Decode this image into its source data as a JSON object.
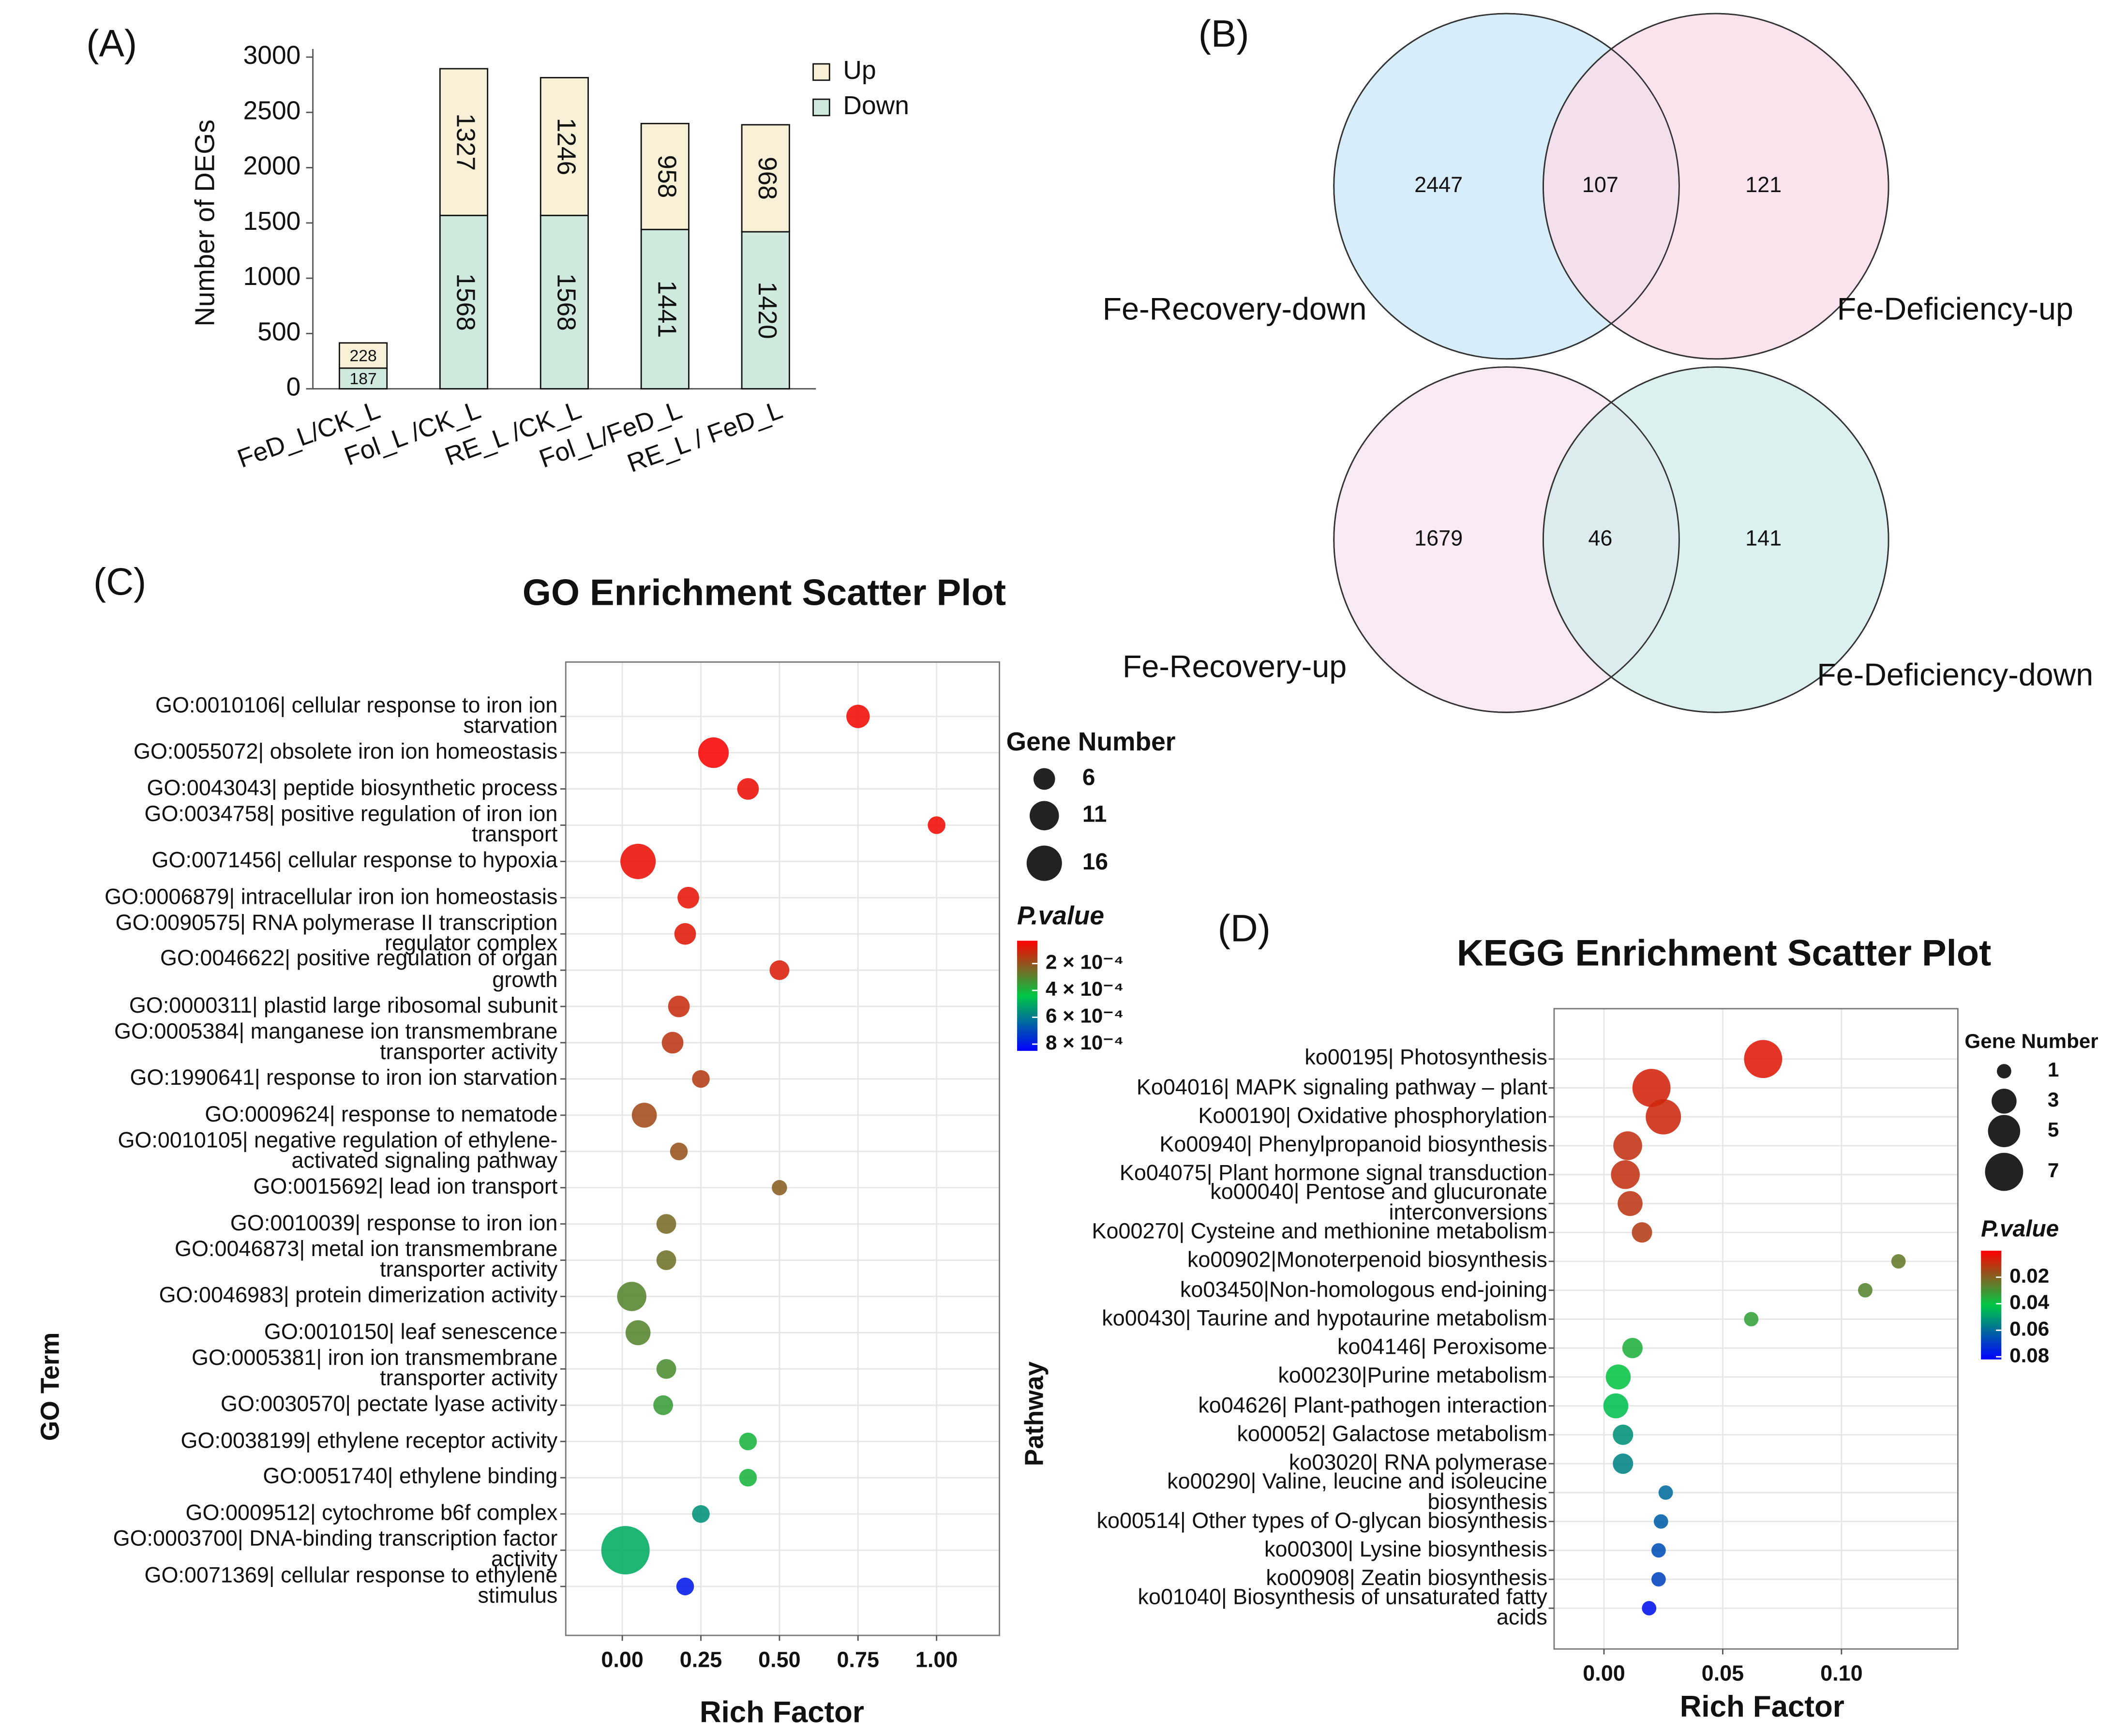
{
  "chart_data": [
    {
      "type": "bar",
      "panel": "(A)",
      "stacked": true,
      "ylabel": "Number of DEGs",
      "categories": [
        "FeD_L/CK_L",
        "Fol_L /CK_L",
        "RE_L /CK_L",
        "Fol_L/FeD_L",
        "RE_L / FeD_L"
      ],
      "series": [
        {
          "name": "Down",
          "color": "#cfe9dd",
          "values": [
            187,
            1568,
            1568,
            1441,
            1420
          ]
        },
        {
          "name": "Up",
          "color": "#f7f0d6",
          "values": [
            228,
            1327,
            1246,
            958,
            968
          ]
        }
      ],
      "ylim": [
        0,
        3000
      ],
      "yticks": [
        0,
        500,
        1000,
        1500,
        2000,
        2500,
        3000
      ],
      "legend": "top-right"
    },
    {
      "type": "venn",
      "panel": "(B)",
      "sets": [
        {
          "name": "Fe-Recovery-down",
          "color": "#cde9f7"
        },
        {
          "name": "Fe-Deficiency-up",
          "color": "#fadcea"
        }
      ],
      "values": [
        2447,
        107,
        121
      ]
    },
    {
      "type": "venn",
      "sets": [
        {
          "name": "Fe-Recovery-up",
          "color": "#f6e4ef"
        },
        {
          "name": "Fe-Deficiency-down",
          "color": "#d4ecec"
        }
      ],
      "values": [
        1679,
        46,
        141
      ]
    },
    {
      "type": "bubble",
      "panel": "(C)",
      "title": "GO Enrichment Scatter Plot",
      "xlabel": "Rich Factor",
      "ylabel": "GO Term",
      "categories": [
        "GO:0010106| cellular response to iron ion\nstarvation",
        "GO:0055072| obsolete iron ion homeostasis",
        "GO:0043043| peptide biosynthetic process",
        "GO:0034758| positive regulation of iron ion\ntransport",
        "GO:0071456| cellular response to hypoxia",
        "GO:0006879| intracellular iron ion homeostasis",
        "GO:0090575| RNA polymerase II transcription\nregulator complex",
        "GO:0046622| positive regulation of organ\ngrowth",
        "GO:0000311| plastid large ribosomal subunit",
        "GO:0005384| manganese ion transmembrane\ntransporter activity",
        "GO:1990641| response to iron ion starvation",
        "GO:0009624| response to nematode",
        "GO:0010105| negative regulation of ethylene-\nactivated signaling pathway",
        "GO:0015692| lead ion transport",
        "GO:0010039| response to iron ion",
        "GO:0046873| metal ion transmembrane\ntransporter activity",
        "GO:0046983| protein dimerization activity",
        "GO:0010150| leaf senescence",
        "GO:0005381| iron ion transmembrane\ntransporter activity",
        "GO:0030570| pectate lyase activity",
        "GO:0038199| ethylene receptor activity",
        "GO:0051740| ethylene binding",
        "GO:0009512| cytochrome b6f complex",
        "GO:0003700| DNA-binding transcription factor\nactivity",
        "GO:0071369| cellular response to ethylene\nstimulus"
      ],
      "x": [
        0.75,
        0.29,
        0.4,
        1.0,
        0.05,
        0.21,
        0.2,
        0.5,
        0.18,
        0.16,
        0.25,
        0.07,
        0.18,
        0.5,
        0.14,
        0.14,
        0.03,
        0.05,
        0.14,
        0.13,
        0.4,
        0.4,
        0.25,
        0.01,
        0.2
      ],
      "sizes": [
        7,
        12,
        6,
        4,
        16,
        6,
        6,
        5,
        6,
        6,
        4,
        8,
        4,
        3,
        5,
        5,
        11,
        8,
        5,
        5,
        4,
        4,
        4,
        30,
        4
      ],
      "pvalues": [
        5e-05,
        4e-05,
        6e-05,
        5e-05,
        6e-05,
        7e-05,
        8e-05,
        9e-05,
        0.00012,
        0.00014,
        0.00015,
        0.00018,
        0.0002,
        0.00022,
        0.00025,
        0.00026,
        0.0003,
        0.0003,
        0.00032,
        0.00035,
        0.0004,
        0.0004,
        0.00055,
        0.0005,
        0.0008
      ],
      "xlim": [
        -0.18,
        1.2
      ],
      "xticks": [
        {
          "value": 0,
          "label": "0.00"
        },
        {
          "value": 0.25,
          "label": "0.25"
        },
        {
          "value": 0.5,
          "label": "0.50"
        },
        {
          "value": 0.75,
          "label": "0.75"
        },
        {
          "value": 1,
          "label": "1.00"
        }
      ],
      "grid": true,
      "size_title": "Gene Number",
      "size_legend": [
        6,
        11,
        16
      ],
      "color_title": "P.value",
      "colors": [
        "#ff0000",
        "#00c845",
        "#0000ff"
      ],
      "clim": [
        3e-05,
        0.00085
      ],
      "cticks": [
        {
          "value": 0.0002,
          "label": "2 × 10⁻⁴"
        },
        {
          "value": 0.0004,
          "label": "4 × 10⁻⁴"
        },
        {
          "value": 0.0006,
          "label": "6 × 10⁻⁴"
        },
        {
          "value": 0.0008,
          "label": "8 × 10⁻⁴"
        }
      ]
    },
    {
      "type": "bubble",
      "panel": "(D)",
      "title": "KEGG Enrichment Scatter Plot",
      "xlabel": "Rich Factor",
      "ylabel": "Pathway",
      "categories": [
        "ko00195| Photosynthesis",
        "Ko04016| MAPK signaling pathway – plant",
        "Ko00190| Oxidative phosphorylation",
        "Ko00940| Phenylpropanoid biosynthesis",
        "Ko04075| Plant hormone signal transduction",
        "ko00040| Pentose and glucuronate\ninterconversions",
        "Ko00270| Cysteine and methionine metabolism",
        "ko00902|Monoterpenoid biosynthesis",
        "ko03450|Non-homologous end-joining",
        "ko00430| Taurine and hypotaurine metabolism",
        "ko04146| Peroxisome",
        "ko00230|Purine metabolism",
        "ko04626| Plant-pathogen interaction",
        "ko00052| Galactose metabolism",
        "ko03020| RNA polymerase",
        "ko00290| Valine, leucine and isoleucine\nbiosynthesis",
        "ko00514| Other types of O-glycan biosynthesis",
        "ko00300| Lysine biosynthesis",
        "ko00908| Zeatin biosynthesis",
        "ko01040| Biosynthesis of unsaturated fatty\nacids"
      ],
      "x": [
        0.067,
        0.02,
        0.025,
        0.01,
        0.009,
        0.011,
        0.016,
        0.124,
        0.11,
        0.062,
        0.012,
        0.006,
        0.005,
        0.008,
        0.008,
        0.026,
        0.024,
        0.023,
        0.023,
        0.019
      ],
      "sizes": [
        7,
        7,
        6,
        4,
        4,
        3,
        2,
        1,
        1,
        1,
        2,
        3,
        3,
        2,
        2,
        1,
        1,
        1,
        1,
        1
      ],
      "pvalues": [
        0.005,
        0.007,
        0.008,
        0.01,
        0.01,
        0.011,
        0.012,
        0.025,
        0.027,
        0.033,
        0.036,
        0.04,
        0.043,
        0.052,
        0.055,
        0.06,
        0.063,
        0.066,
        0.068,
        0.078
      ],
      "xlim": [
        -0.021,
        0.149
      ],
      "xticks": [
        {
          "value": 0,
          "label": "0.00"
        },
        {
          "value": 0.05,
          "label": "0.05"
        },
        {
          "value": 0.1,
          "label": "0.10"
        }
      ],
      "grid": true,
      "size_title": "Gene Number",
      "size_legend": [
        1,
        3,
        5,
        7
      ],
      "color_title": "P.value",
      "colors": [
        "#ff0000",
        "#00c845",
        "#0000ff"
      ],
      "clim": [
        0,
        0.082
      ],
      "cticks": [
        0.02,
        0.04,
        0.06,
        0.08
      ]
    }
  ]
}
